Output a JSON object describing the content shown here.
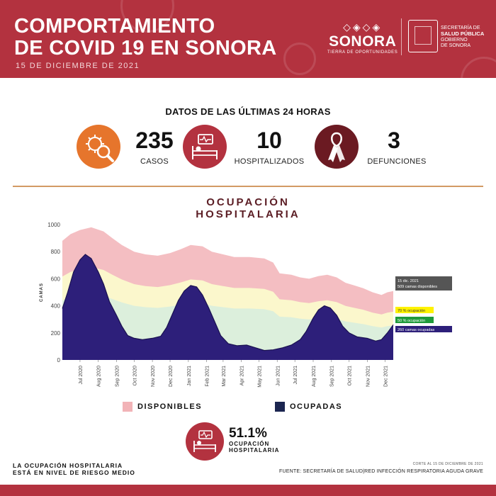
{
  "header": {
    "title_line1": "COMPORTAMIENTO",
    "title_line2": "DE COVID 19 EN SONORA",
    "date": "15 DE DICIEMBRE DE 2021",
    "logo_word": "SONORA",
    "logo_sub": "TIERRA DE OPORTUNIDADES",
    "dept_line1": "SECRETARÍA DE",
    "dept_line2": "SALUD PÚBLICA",
    "dept_line3": "GOBIERNO",
    "dept_line4": "DE SONORA"
  },
  "summary": {
    "title": "DATOS DE LAS ÚLTIMAS 24 HORAS",
    "cases": {
      "value": "235",
      "label": "CASOS",
      "color": "#e6752c"
    },
    "hospitalized": {
      "value": "10",
      "label": "HOSPITALIZADOS",
      "color": "#b3323f"
    },
    "deaths": {
      "value": "3",
      "label": "DEFUNCIONES",
      "color": "#6b1a22"
    }
  },
  "occupancy": {
    "title_line1": "OCUPACIÓN",
    "title_line2": "HOSPITALARIA",
    "percent": "51.1%",
    "percent_label_line1": "OCUPACIÓN",
    "percent_label_line2": "HOSPITALARIA"
  },
  "chart_data": {
    "type": "area",
    "ylabel": "CAMAS",
    "ylim": [
      0,
      1000
    ],
    "yticks": [
      0,
      200,
      400,
      600,
      800,
      1000
    ],
    "x_start": "2020-06-01",
    "x_end": "2021-12-15",
    "month_ticks": [
      {
        "date": "2020-07-01",
        "label": "Jul 2020"
      },
      {
        "date": "2020-08-01",
        "label": "Aug 2020"
      },
      {
        "date": "2020-09-01",
        "label": "Sep 2020"
      },
      {
        "date": "2020-10-01",
        "label": "Oct 2020"
      },
      {
        "date": "2020-11-01",
        "label": "Nov 2020"
      },
      {
        "date": "2020-12-01",
        "label": "Dec 2020"
      },
      {
        "date": "2021-01-01",
        "label": "Jan 2021"
      },
      {
        "date": "2021-02-01",
        "label": "Feb 2021"
      },
      {
        "date": "2021-03-01",
        "label": "Mar 2021"
      },
      {
        "date": "2021-04-01",
        "label": "Apr 2021"
      },
      {
        "date": "2021-05-01",
        "label": "May 2021"
      },
      {
        "date": "2021-06-01",
        "label": "Jun 2021"
      },
      {
        "date": "2021-07-01",
        "label": "Jul 2021"
      },
      {
        "date": "2021-08-01",
        "label": "Aug 2021"
      },
      {
        "date": "2021-09-01",
        "label": "Sep 2021"
      },
      {
        "date": "2021-10-01",
        "label": "Oct 2021"
      },
      {
        "date": "2021-11-01",
        "label": "Nov 2021"
      },
      {
        "date": "2021-12-01",
        "label": "Dec 2021"
      }
    ],
    "series": [
      {
        "name": "DISPONIBLES",
        "color": "#f2b3b7",
        "points": [
          [
            "2020-06-01",
            880
          ],
          [
            "2020-06-15",
            930
          ],
          [
            "2020-07-01",
            960
          ],
          [
            "2020-07-20",
            980
          ],
          [
            "2020-08-10",
            950
          ],
          [
            "2020-08-25",
            900
          ],
          [
            "2020-09-10",
            850
          ],
          [
            "2020-10-01",
            800
          ],
          [
            "2020-10-20",
            780
          ],
          [
            "2020-11-10",
            770
          ],
          [
            "2020-12-01",
            790
          ],
          [
            "2020-12-20",
            820
          ],
          [
            "2021-01-05",
            850
          ],
          [
            "2021-01-25",
            840
          ],
          [
            "2021-02-10",
            800
          ],
          [
            "2021-03-01",
            780
          ],
          [
            "2021-03-20",
            760
          ],
          [
            "2021-04-15",
            760
          ],
          [
            "2021-05-10",
            750
          ],
          [
            "2021-05-25",
            720
          ],
          [
            "2021-06-05",
            640
          ],
          [
            "2021-06-25",
            630
          ],
          [
            "2021-07-10",
            610
          ],
          [
            "2021-07-25",
            600
          ],
          [
            "2021-08-10",
            620
          ],
          [
            "2021-08-25",
            630
          ],
          [
            "2021-09-10",
            610
          ],
          [
            "2021-09-25",
            570
          ],
          [
            "2021-10-10",
            550
          ],
          [
            "2021-10-25",
            530
          ],
          [
            "2021-11-10",
            500
          ],
          [
            "2021-11-25",
            480
          ],
          [
            "2021-12-05",
            500
          ],
          [
            "2021-12-15",
            509
          ]
        ]
      },
      {
        "name": "OCUPADAS",
        "color": "#2d1f7a",
        "points": [
          [
            "2020-06-01",
            380
          ],
          [
            "2020-06-10",
            500
          ],
          [
            "2020-06-20",
            650
          ],
          [
            "2020-07-01",
            740
          ],
          [
            "2020-07-10",
            780
          ],
          [
            "2020-07-20",
            750
          ],
          [
            "2020-08-01",
            650
          ],
          [
            "2020-08-10",
            560
          ],
          [
            "2020-08-20",
            430
          ],
          [
            "2020-09-01",
            330
          ],
          [
            "2020-09-10",
            250
          ],
          [
            "2020-09-20",
            180
          ],
          [
            "2020-10-01",
            160
          ],
          [
            "2020-10-15",
            150
          ],
          [
            "2020-11-01",
            160
          ],
          [
            "2020-11-15",
            175
          ],
          [
            "2020-11-25",
            240
          ],
          [
            "2020-12-05",
            340
          ],
          [
            "2020-12-15",
            440
          ],
          [
            "2020-12-25",
            510
          ],
          [
            "2021-01-05",
            550
          ],
          [
            "2021-01-15",
            540
          ],
          [
            "2021-01-25",
            480
          ],
          [
            "2021-02-05",
            380
          ],
          [
            "2021-02-15",
            280
          ],
          [
            "2021-02-25",
            180
          ],
          [
            "2021-03-10",
            120
          ],
          [
            "2021-03-25",
            105
          ],
          [
            "2021-04-10",
            110
          ],
          [
            "2021-04-25",
            90
          ],
          [
            "2021-05-10",
            70
          ],
          [
            "2021-05-25",
            75
          ],
          [
            "2021-06-10",
            90
          ],
          [
            "2021-06-25",
            110
          ],
          [
            "2021-07-10",
            150
          ],
          [
            "2021-07-20",
            210
          ],
          [
            "2021-08-01",
            310
          ],
          [
            "2021-08-10",
            370
          ],
          [
            "2021-08-20",
            400
          ],
          [
            "2021-08-30",
            385
          ],
          [
            "2021-09-10",
            330
          ],
          [
            "2021-09-20",
            250
          ],
          [
            "2021-10-01",
            200
          ],
          [
            "2021-10-15",
            170
          ],
          [
            "2021-11-01",
            160
          ],
          [
            "2021-11-15",
            140
          ],
          [
            "2021-11-25",
            150
          ],
          [
            "2021-12-05",
            200
          ],
          [
            "2021-12-15",
            260
          ]
        ]
      }
    ],
    "threshold_bands": [
      {
        "label": "70 % ocupación",
        "color": "#fbf7cc",
        "badge_color": "#fff200",
        "ref": "70%"
      },
      {
        "label": "50 % ocupación",
        "color": "#dcefdc",
        "badge_color": "#1f9a3a",
        "ref": "50%"
      }
    ],
    "annotations": {
      "date_label": "15 dic. 2021",
      "available_label": "509 camas disponibles",
      "occupied_label": "260 camas ocupadas"
    },
    "legend": [
      "DISPONIBLES",
      "OCUPADAS"
    ]
  },
  "footer": {
    "risk_line1": "LA OCUPACIÓN HOSPITALARIA",
    "risk_line2": "ESTÁ EN NIVEL DE RIESGO MEDIO",
    "cut": "CORTE AL 15 DE DICIEMBRE DE 2021",
    "source": "FUENTE: SECRETARÍA DE SALUD|RED INFECCIÓN RESPIRATORIA AGUDA GRAVE"
  }
}
